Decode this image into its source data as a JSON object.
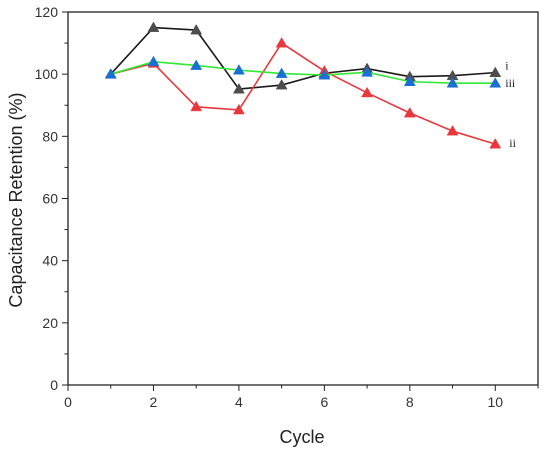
{
  "chart_data": {
    "type": "line",
    "title": "",
    "xlabel": "Cycle",
    "ylabel": "Capacitance Retention (%)",
    "xlim": [
      0,
      11
    ],
    "ylim": [
      0,
      120
    ],
    "xticks": [
      0,
      2,
      4,
      6,
      8,
      10
    ],
    "yticks": [
      0,
      20,
      40,
      60,
      80,
      100,
      120
    ],
    "grid": false,
    "legend": "none",
    "series": [
      {
        "name": "i",
        "line_color": "#1a1a1a",
        "marker_color": "#4d4d4d",
        "x": [
          1,
          2,
          3,
          4,
          5,
          6,
          7,
          8,
          9,
          10
        ],
        "y": [
          100,
          115,
          114.2,
          95.2,
          96.5,
          100.3,
          101.8,
          99.2,
          99.5,
          100.5
        ]
      },
      {
        "name": "ii",
        "line_color": "#e8383d",
        "marker_color": "#e8383d",
        "x": [
          1,
          2,
          3,
          4,
          5,
          6,
          7,
          8,
          9,
          10
        ],
        "y": [
          100,
          103.5,
          89.5,
          88.5,
          110,
          101,
          94,
          87.5,
          81.7,
          77.5
        ]
      },
      {
        "name": "iii",
        "line_color": "#33e833",
        "marker_color": "#1a6fd4",
        "x": [
          1,
          2,
          3,
          4,
          5,
          6,
          7,
          8,
          9,
          10
        ],
        "y": [
          100,
          104,
          102.8,
          101.3,
          100.2,
          99.7,
          100.6,
          97.6,
          97.1,
          97.1
        ]
      }
    ]
  }
}
